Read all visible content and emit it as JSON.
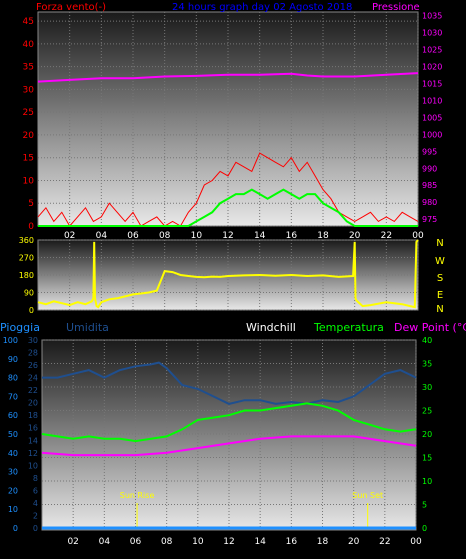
{
  "chart_data": [
    {
      "type": "line",
      "title": "24 hours graph day  02 Agosto 2018",
      "left_axis_label": "Forza vento(-)",
      "right_axis_label": "Pressione",
      "x_tick_labels": [
        "02",
        "04",
        "06",
        "08",
        "10",
        "12",
        "14",
        "16",
        "18",
        "20",
        "22",
        "00"
      ],
      "y_left_ticks": [
        0,
        5,
        10,
        15,
        20,
        25,
        30,
        35,
        40,
        45
      ],
      "y_left_range": [
        0,
        47
      ],
      "y_right_ticks": [
        975,
        980,
        985,
        990,
        995,
        1000,
        1005,
        1010,
        1015,
        1020,
        1025,
        1030,
        1035
      ],
      "y_right_range": [
        973,
        1036
      ],
      "grid": true,
      "colors": {
        "wind": "#ff0000",
        "gust": "#00ff00",
        "pressure": "#ff00ff",
        "title": "#0000ff",
        "axis_left": "#ff0000",
        "axis_right": "#ff00ff"
      },
      "series": [
        {
          "role": "wind",
          "axis": "left",
          "x": [
            0,
            0.5,
            1,
            1.5,
            2,
            2.5,
            3,
            3.5,
            4,
            4.5,
            5,
            5.5,
            6,
            6.5,
            7,
            7.5,
            8,
            8.5,
            9,
            9.5,
            10,
            10.5,
            11,
            11.5,
            12,
            12.5,
            13,
            13.5,
            14,
            14.5,
            15,
            15.5,
            16,
            16.5,
            17,
            17.5,
            18,
            18.5,
            19,
            19.5,
            20,
            20.5,
            21,
            21.5,
            22,
            22.5,
            23,
            23.5,
            24
          ],
          "values": [
            2,
            4,
            1,
            3,
            0,
            2,
            4,
            1,
            2,
            5,
            3,
            1,
            3,
            0,
            1,
            2,
            0,
            1,
            0,
            3,
            5,
            9,
            10,
            12,
            11,
            14,
            13,
            12,
            16,
            15,
            14,
            13,
            15,
            12,
            14,
            11,
            8,
            6,
            3,
            2,
            1,
            2,
            3,
            1,
            2,
            1,
            3,
            2,
            1
          ]
        },
        {
          "role": "gust",
          "axis": "left",
          "x": [
            0,
            1,
            2,
            3,
            4,
            5,
            6,
            7,
            8,
            8.5,
            9,
            9.5,
            10,
            10.5,
            11,
            11.5,
            12,
            12.5,
            13,
            13.5,
            14,
            14.5,
            15,
            15.5,
            16,
            16.5,
            17,
            17.5,
            18,
            18.5,
            19,
            19.5,
            20,
            21,
            22,
            23,
            24
          ],
          "values": [
            0,
            0,
            0,
            0,
            0,
            0,
            0,
            0,
            0,
            0,
            0,
            0,
            1,
            2,
            3,
            5,
            6,
            7,
            7,
            8,
            7,
            6,
            7,
            8,
            7,
            6,
            7,
            7,
            5,
            4,
            3,
            1,
            0,
            0,
            0,
            0,
            0
          ]
        },
        {
          "role": "pressure",
          "axis": "right",
          "x": [
            0,
            2,
            4,
            6,
            8,
            10,
            12,
            14,
            16,
            17,
            18,
            20,
            22,
            24
          ],
          "values": [
            1015.5,
            1016,
            1016.5,
            1016.5,
            1017,
            1017.2,
            1017.5,
            1017.5,
            1017.8,
            1017.3,
            1017,
            1017,
            1017.5,
            1018
          ]
        }
      ]
    },
    {
      "type": "line",
      "side_labels": [
        "N",
        "W",
        "S",
        "E",
        "N"
      ],
      "y_left_ticks": [
        0,
        90,
        180,
        270,
        360
      ],
      "y_range": [
        0,
        360
      ],
      "x_tick_labels": [
        "02",
        "04",
        "06",
        "08",
        "10",
        "12",
        "14",
        "16",
        "18",
        "20",
        "22",
        "00"
      ],
      "grid": true,
      "colors": {
        "direction": "#ffff00"
      },
      "series": [
        {
          "role": "direction",
          "x": [
            0,
            0.5,
            1,
            1.5,
            2,
            2.5,
            3,
            3.4,
            3.5,
            3.55,
            3.6,
            3.7,
            3.8,
            4,
            4.5,
            5,
            5.5,
            6,
            6.5,
            7,
            7.5,
            8,
            8.5,
            9,
            9.5,
            10,
            10.5,
            11,
            11.5,
            12,
            13,
            14,
            15,
            16,
            17,
            18,
            19,
            19.9,
            20,
            20.05,
            20.1,
            20.5,
            21,
            22,
            23,
            23.5,
            23.8,
            23.9,
            24
          ],
          "values": [
            40,
            30,
            45,
            35,
            25,
            40,
            30,
            45,
            60,
            350,
            60,
            20,
            15,
            40,
            55,
            60,
            70,
            80,
            85,
            90,
            100,
            200,
            195,
            180,
            175,
            170,
            168,
            172,
            170,
            175,
            178,
            180,
            176,
            180,
            175,
            178,
            170,
            175,
            350,
            60,
            50,
            20,
            25,
            40,
            30,
            20,
            15,
            350,
            360
          ]
        }
      ]
    },
    {
      "type": "line",
      "labels": {
        "rain": "Pioggia",
        "humidity": "Umidita",
        "windchill": "Windchill",
        "temperature": "Temperatura",
        "dewpoint": "Dew Point (°C)",
        "sunrise": "Sun Rise",
        "sunset": "Sun Set"
      },
      "y_rain_ticks": [
        0,
        2,
        4,
        6,
        8,
        10,
        12,
        14,
        16,
        18,
        20,
        22,
        24,
        26,
        28,
        30
      ],
      "y_hum_ticks": [
        0,
        10,
        20,
        30,
        40,
        50,
        60,
        70,
        80,
        90,
        100
      ],
      "y_temp_ticks": [
        0,
        5,
        10,
        15,
        20,
        25,
        30,
        35,
        40
      ],
      "y_temp_range": [
        0,
        40
      ],
      "x_tick_labels": [
        "02",
        "04",
        "06",
        "08",
        "10",
        "12",
        "14",
        "16",
        "18",
        "20",
        "22",
        "00"
      ],
      "sunrise_x": 6.1,
      "sunset_x": 20.9,
      "grid": true,
      "colors": {
        "rain": "#1e90ff",
        "humidity": "#1f4f8f",
        "windchill": "#ffffff",
        "temperature": "#00ff00",
        "dewpoint": "#ff00ff",
        "sun": "#ffff00"
      },
      "series": [
        {
          "role": "humidity",
          "axis": "humidity",
          "x": [
            0,
            1,
            2,
            3,
            4,
            5,
            6,
            7,
            7.5,
            8,
            9,
            10,
            11,
            12,
            13,
            14,
            15,
            16,
            17,
            18,
            19,
            20,
            21,
            22,
            23,
            24
          ],
          "values": [
            80,
            80,
            82,
            84,
            80,
            84,
            86,
            87,
            88,
            85,
            76,
            74,
            70,
            66,
            68,
            68,
            66,
            67,
            66,
            68,
            67,
            70,
            76,
            82,
            84,
            80
          ]
        },
        {
          "role": "temperature",
          "axis": "temperature",
          "x": [
            0,
            1,
            2,
            3,
            4,
            5,
            6,
            7,
            8,
            9,
            10,
            11,
            12,
            13,
            14,
            15,
            16,
            17,
            18,
            19,
            20,
            21,
            22,
            23,
            24
          ],
          "values": [
            20,
            19.5,
            19,
            19.5,
            19,
            19,
            18.5,
            19,
            19.5,
            21,
            23,
            23.5,
            24,
            25,
            25,
            25.5,
            26,
            26.5,
            26,
            25,
            23,
            22,
            21,
            20.5,
            21
          ]
        },
        {
          "role": "dewpoint",
          "axis": "temperature",
          "x": [
            0,
            2,
            4,
            6,
            8,
            10,
            12,
            14,
            16,
            18,
            20,
            22,
            24
          ],
          "values": [
            16,
            15.5,
            15.5,
            15.5,
            16,
            17,
            18,
            19,
            19.5,
            19.5,
            19.5,
            18.5,
            17.5
          ]
        },
        {
          "role": "rain",
          "axis": "rain",
          "x": [
            0,
            24
          ],
          "values": [
            0,
            0
          ]
        }
      ]
    }
  ]
}
